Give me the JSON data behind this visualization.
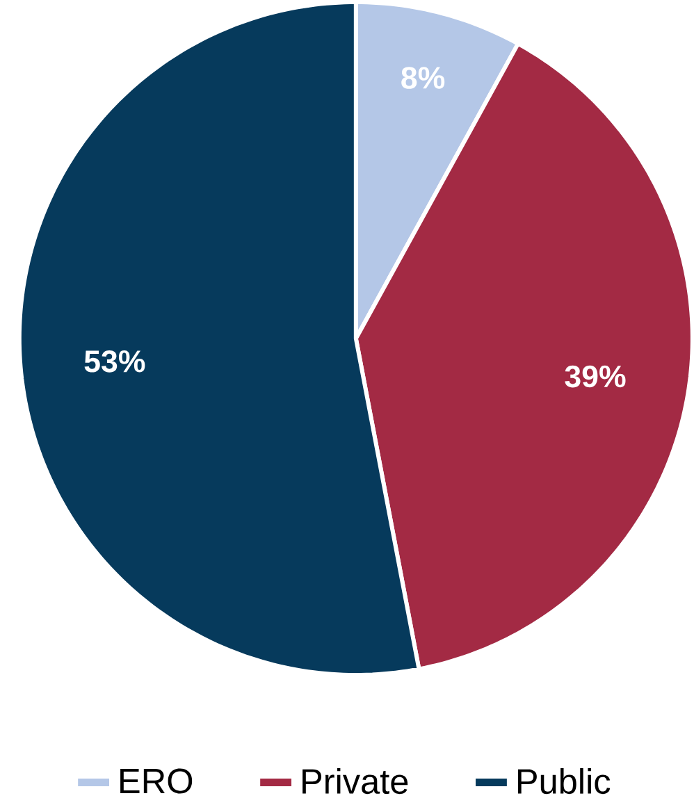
{
  "chart_data": {
    "type": "pie",
    "categories": [
      "ERO",
      "Private",
      "Public"
    ],
    "values": [
      8,
      39,
      53
    ],
    "colors": [
      "#b4c7e7",
      "#a32a44",
      "#063a5c"
    ],
    "value_labels": [
      "8%",
      "39%",
      "53%"
    ],
    "legend": "bottom"
  }
}
